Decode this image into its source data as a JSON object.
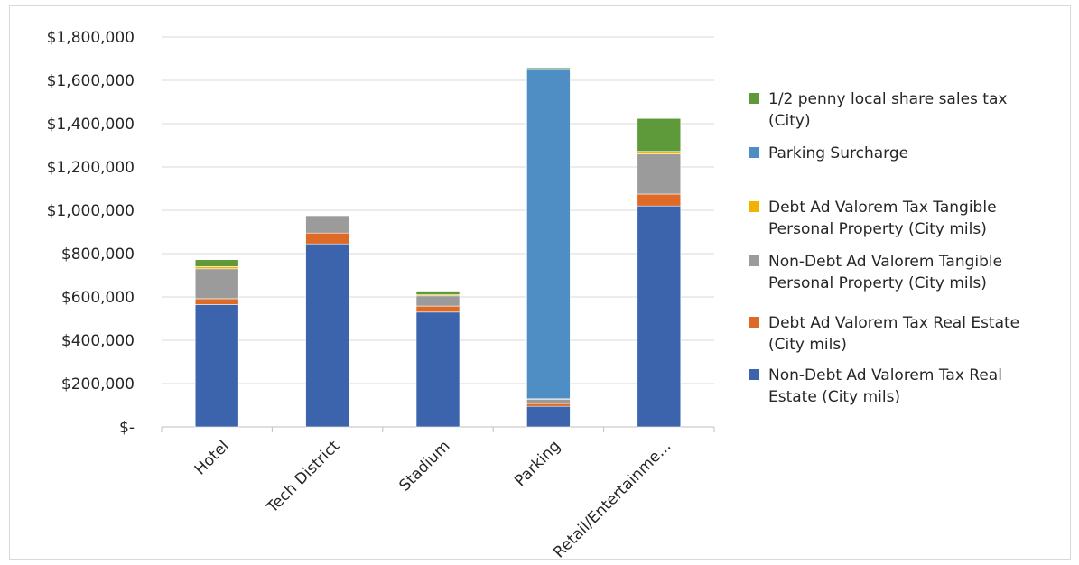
{
  "chart_data": {
    "type": "bar",
    "stacked": true,
    "title": "",
    "xlabel": "",
    "ylabel": "",
    "ylim": [
      0,
      1800000
    ],
    "yticks": [
      0,
      200000,
      400000,
      600000,
      800000,
      1000000,
      1200000,
      1400000,
      1600000,
      1800000
    ],
    "ytick_labels": [
      "$-",
      "$200,000",
      "$400,000",
      "$600,000",
      "$800,000",
      "$1,000,000",
      "$1,200,000",
      "$1,400,000",
      "$1,600,000",
      "$1,800,000"
    ],
    "grid": true,
    "legend_position": "right",
    "categories": [
      "Hotel",
      "Tech District",
      "Stadium",
      "Parking",
      "Retail/Entertainme..."
    ],
    "series": [
      {
        "name": "Non-Debt Ad Valorem Tax Real Estate (City mils)",
        "legend_lines": [
          "Non-Debt Ad Valorem Tax Real",
          "Estate (City mils)"
        ],
        "color": "#3c64ad",
        "values": [
          565000,
          845000,
          530000,
          95000,
          1020000
        ]
      },
      {
        "name": "Debt Ad Valorem Tax Real Estate (City mils)",
        "legend_lines": [
          "Debt Ad Valorem Tax Real Estate",
          "(City mils)"
        ],
        "color": "#dd6b27",
        "values": [
          27000,
          50000,
          28000,
          13000,
          55000
        ]
      },
      {
        "name": "Non-Debt Ad Valorem Tangible Personal Property (City mils)",
        "legend_lines": [
          "Non-Debt Ad Valorem Tangible",
          "Personal Property (City mils)"
        ],
        "color": "#9b9b9b",
        "values": [
          138000,
          80000,
          47000,
          20000,
          185000
        ]
      },
      {
        "name": "Debt Ad Valorem Tax Tangible Personal Property (City mils)",
        "legend_lines": [
          "Debt Ad Valorem Tax Tangible",
          "Personal Property (City mils)"
        ],
        "color": "#f2b300",
        "values": [
          10000,
          0,
          5000,
          2000,
          12000
        ]
      },
      {
        "name": "Parking Surcharge",
        "legend_lines": [
          "Parking Surcharge"
        ],
        "color": "#4f8ec4",
        "values": [
          0,
          0,
          0,
          1520000,
          0
        ]
      },
      {
        "name": "1/2 penny local share sales tax (City)",
        "legend_lines": [
          "1/2 penny local share sales tax",
          "(City)"
        ],
        "color": "#5f9a3a",
        "values": [
          32000,
          0,
          17000,
          8000,
          152000
        ]
      }
    ]
  }
}
